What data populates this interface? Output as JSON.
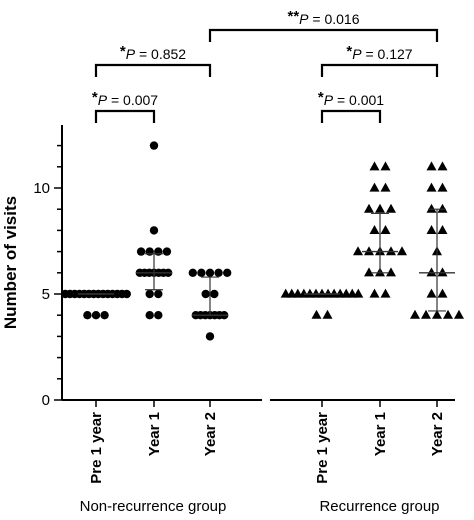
{
  "chart_data": {
    "type": "scatter",
    "ylabel": "Number of visits",
    "ylim": [
      0,
      12.5
    ],
    "yticks": [
      0,
      5,
      10
    ],
    "categories": [
      "Pre 1 year",
      "Year 1",
      "Year 2",
      "Pre 1 year",
      "Year 1",
      "Year 2"
    ],
    "groups": [
      "Non-recurrence group",
      "Recurrence group"
    ],
    "series": [
      {
        "group": "Non-recurrence group",
        "category": "Pre 1 year",
        "marker": "circle",
        "values": [
          5,
          5,
          5,
          5,
          5,
          5,
          5,
          5,
          5,
          5,
          5,
          5,
          5,
          5,
          4,
          4,
          4
        ],
        "summary": {
          "center": 5,
          "low": 5,
          "high": 5
        }
      },
      {
        "group": "Non-recurrence group",
        "category": "Year 1",
        "marker": "circle",
        "values": [
          12,
          8,
          7,
          7,
          7,
          7,
          6,
          6,
          6,
          6,
          6,
          6,
          6,
          5,
          5,
          4,
          4
        ],
        "summary": {
          "center": 6,
          "low": 5.2,
          "high": 6.9
        }
      },
      {
        "group": "Non-recurrence group",
        "category": "Year 2",
        "marker": "circle",
        "values": [
          6,
          6,
          6,
          6,
          6,
          5,
          5,
          4,
          4,
          4,
          4,
          4,
          4,
          4,
          3
        ],
        "summary": {
          "center": 4,
          "low": 4,
          "high": 5.8
        }
      },
      {
        "group": "Recurrence group",
        "category": "Pre 1 year",
        "marker": "triangle",
        "values": [
          5,
          5,
          5,
          5,
          5,
          5,
          5,
          5,
          5,
          5,
          5,
          5,
          5,
          4,
          4
        ],
        "summary": {
          "center": 5,
          "low": 5,
          "high": 5
        }
      },
      {
        "group": "Recurrence group",
        "category": "Year 1",
        "marker": "triangle",
        "values": [
          11,
          11,
          10,
          10,
          9,
          9,
          9,
          8,
          8,
          7,
          7,
          7,
          7,
          7,
          6,
          6,
          6,
          5,
          5
        ],
        "summary": {
          "center": 7,
          "low": 6,
          "high": 8.8
        }
      },
      {
        "group": "Recurrence group",
        "category": "Year 2",
        "marker": "triangle",
        "values": [
          11,
          11,
          10,
          10,
          9,
          9,
          8,
          8,
          7,
          6,
          6,
          5,
          5,
          4,
          4,
          4,
          4,
          4
        ],
        "summary": {
          "center": 6,
          "low": 4.2,
          "high": 9
        }
      }
    ],
    "annotations": [
      {
        "from": 0,
        "to": 1,
        "stars": "*",
        "p": "P",
        "text": " = 0.007",
        "level": 0
      },
      {
        "from": 0,
        "to": 2,
        "stars": "*",
        "p": "P",
        "text": " = 0.852",
        "level": 1
      },
      {
        "from": 3,
        "to": 4,
        "stars": "*",
        "p": "P",
        "text": " = 0.001",
        "level": 0
      },
      {
        "from": 3,
        "to": 5,
        "stars": "*",
        "p": "P",
        "text": " = 0.127",
        "level": 1
      },
      {
        "from": 2,
        "to": 5,
        "stars": "**",
        "p": "P",
        "text": " = 0.016",
        "level": 2
      }
    ]
  }
}
